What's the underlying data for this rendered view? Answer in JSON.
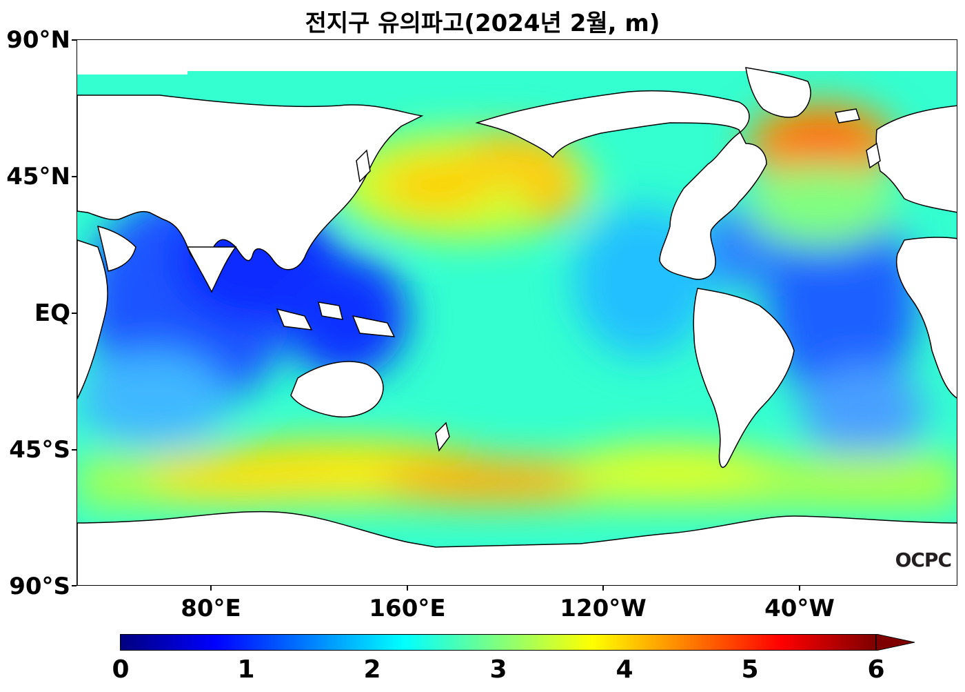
{
  "title": "전지구 유의파고(2024년 2월, m)",
  "y_axis_labels": [
    "90°N",
    "45°N",
    "EQ",
    "45°S",
    "90°S"
  ],
  "x_axis_labels": [
    "80°E",
    "160°E",
    "120°W",
    "40°W"
  ],
  "colorbar": {
    "ticks": [
      "0",
      "1",
      "2",
      "3",
      "4",
      "5",
      "6"
    ],
    "min": 0,
    "max": 6,
    "extend": "max",
    "colormap": "jet",
    "colors": [
      "#00007f",
      "#0000ff",
      "#007fff",
      "#00ffff",
      "#7fff7f",
      "#ffff00",
      "#ff7f00",
      "#ff0000",
      "#7f0000"
    ]
  },
  "watermark": "OCPC",
  "map": {
    "land_color": "#ffffff",
    "coastline_color": "#000000"
  }
}
